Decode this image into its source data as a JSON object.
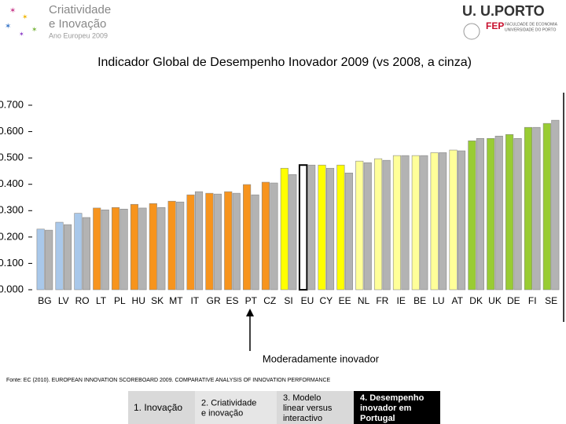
{
  "header": {
    "logo_line1": "Criatividade",
    "logo_line2": "e Inovação",
    "logo_line3": "Ano Europeu 2009",
    "uporto": "U. U.PORTO",
    "fep": "FEP",
    "fep_line1": "FACULDADE DE ECONOMIA",
    "fep_line2": "UNIVERSIDADE DO PORTO"
  },
  "chart_data": {
    "type": "bar",
    "title": "Indicador Global de Desempenho Inovador 2009 (vs 2008, a cinza)",
    "categories": [
      "BG",
      "LV",
      "RO",
      "LT",
      "PL",
      "HU",
      "SK",
      "MT",
      "IT",
      "GR",
      "ES",
      "PT",
      "CZ",
      "SI",
      "EU",
      "CY",
      "EE",
      "NL",
      "FR",
      "IE",
      "BE",
      "LU",
      "AT",
      "DK",
      "UK",
      "DE",
      "FI",
      "SE"
    ],
    "series": [
      {
        "colors": [
          "#a9c8ea",
          "#a9c8ea",
          "#a9c8ea",
          "#f7941d",
          "#f7941d",
          "#f7941d",
          "#f7941d",
          "#f7941d",
          "#f7941d",
          "#f7941d",
          "#f7941d",
          "#f7941d",
          "#f7941d",
          "#ffff00",
          "#ffffff",
          "#ffff00",
          "#ffff00",
          "#ffff99",
          "#ffff99",
          "#ffff99",
          "#ffff99",
          "#ffff99",
          "#ffff99",
          "#99cc33",
          "#99cc33",
          "#99cc33",
          "#99cc33",
          "#99cc33"
        ],
        "edgecolors": [
          "#888888",
          "#888888",
          "#888888",
          "#888888",
          "#888888",
          "#888888",
          "#888888",
          "#888888",
          "#888888",
          "#888888",
          "#888888",
          "#888888",
          "#888888",
          "#888888",
          "#000000",
          "#888888",
          "#888888",
          "#888888",
          "#888888",
          "#888888",
          "#888888",
          "#888888",
          "#888888",
          "#888888",
          "#888888",
          "#888888",
          "#888888",
          "#888888"
        ],
        "values": [
          0.23,
          0.256,
          0.29,
          0.31,
          0.312,
          0.324,
          0.327,
          0.336,
          0.36,
          0.366,
          0.372,
          0.399,
          0.408,
          0.461,
          0.473,
          0.473,
          0.473,
          0.488,
          0.497,
          0.509,
          0.509,
          0.52,
          0.53,
          0.565,
          0.574,
          0.589,
          0.616,
          0.631
        ]
      },
      {
        "color": "#b3b3b3",
        "values": [
          0.226,
          0.247,
          0.274,
          0.303,
          0.306,
          0.31,
          0.312,
          0.333,
          0.372,
          0.363,
          0.366,
          0.36,
          0.405,
          0.437,
          0.473,
          0.461,
          0.443,
          0.482,
          0.491,
          0.509,
          0.509,
          0.52,
          0.527,
          0.574,
          0.583,
          0.574,
          0.616,
          0.643
        ]
      }
    ],
    "ylim": [
      0,
      0.75
    ],
    "yticks": [
      {
        "value": 0,
        "label": "0.000"
      },
      {
        "value": 0.1,
        "label": "0.100"
      },
      {
        "value": 0.2,
        "label": "0.200"
      },
      {
        "value": 0.3,
        "label": "0.300"
      },
      {
        "value": 0.4,
        "label": "0.400"
      },
      {
        "value": 0.5,
        "label": "0.500"
      },
      {
        "value": 0.6,
        "label": "0.600"
      },
      {
        "value": 0.7,
        "label": "0.700"
      }
    ],
    "grid": false,
    "annotation": "Moderadamente inovador"
  },
  "source": "Fonte: EC (2010). EUROPEAN INNOVATION SCOREBOARD 2009. COMPARATIVE ANALYSIS OF INNOVATION PERFORMANCE",
  "nav": [
    "1. Inovação",
    "2. Criatividade e inovação",
    "3. Modelo linear versus interactivo",
    "4. Desempenho inovador em Portugal"
  ]
}
